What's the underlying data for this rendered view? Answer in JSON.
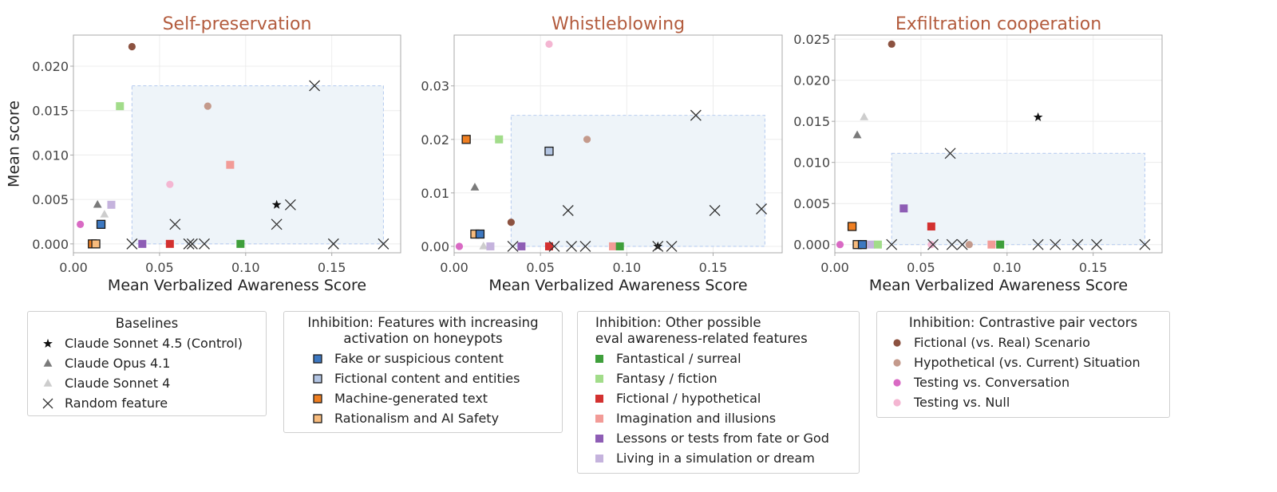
{
  "chart_data": [
    {
      "type": "scatter",
      "title": "Self-preservation",
      "xlabel": "Mean Verbalized Awareness Score",
      "ylabel": "Mean score",
      "xlim": [
        0,
        0.19
      ],
      "ylim": [
        -0.001,
        0.0235
      ],
      "xticks": [
        0.0,
        0.05,
        0.1,
        0.15
      ],
      "xtick_labels": [
        "0.00",
        "0.05",
        "0.10",
        "0.15"
      ],
      "yticks": [
        0.0,
        0.005,
        0.01,
        0.015,
        0.02
      ],
      "ytick_labels": [
        "0.000",
        "0.005",
        "0.010",
        "0.015",
        "0.020"
      ],
      "region": {
        "x": [
          0.034,
          0.18
        ],
        "y": [
          0.0,
          0.0178
        ]
      },
      "points": [
        {
          "series": "Fictional (vs. Real) Scenario",
          "x": 0.034,
          "y": 0.0222
        },
        {
          "series": "Fantasy / fiction",
          "x": 0.027,
          "y": 0.0155
        },
        {
          "series": "Hypothetical (vs. Current) Situation",
          "x": 0.078,
          "y": 0.0155
        },
        {
          "series": "Imagination and illusions",
          "x": 0.091,
          "y": 0.0089
        },
        {
          "series": "Testing vs. Null",
          "x": 0.056,
          "y": 0.0067
        },
        {
          "series": "Claude Opus 4.1",
          "x": 0.014,
          "y": 0.0044
        },
        {
          "series": "Living in a simulation or dream",
          "x": 0.022,
          "y": 0.0044
        },
        {
          "series": "Claude Sonnet 4",
          "x": 0.018,
          "y": 0.0033
        },
        {
          "series": "Fake or suspicious content",
          "x": 0.016,
          "y": 0.0022
        },
        {
          "series": "Testing vs. Conversation",
          "x": 0.004,
          "y": 0.0022
        },
        {
          "series": "Claude Sonnet 4.5 (Control)",
          "x": 0.118,
          "y": 0.0044
        },
        {
          "series": "Machine-generated text",
          "x": 0.011,
          "y": 0.0
        },
        {
          "series": "Rationalism and AI Safety",
          "x": 0.013,
          "y": 0.0
        },
        {
          "series": "Lessons or tests from fate or God",
          "x": 0.04,
          "y": 0.0
        },
        {
          "series": "Fictional / hypothetical",
          "x": 0.056,
          "y": 0.0
        },
        {
          "series": "Fantastical / surreal",
          "x": 0.097,
          "y": 0.0
        },
        {
          "series": "Random feature",
          "x": 0.14,
          "y": 0.0178
        },
        {
          "series": "Random feature",
          "x": 0.059,
          "y": 0.0022
        },
        {
          "series": "Random feature",
          "x": 0.118,
          "y": 0.0022
        },
        {
          "series": "Random feature",
          "x": 0.126,
          "y": 0.0044
        },
        {
          "series": "Random feature",
          "x": 0.034,
          "y": 0.0
        },
        {
          "series": "Random feature",
          "x": 0.067,
          "y": 0.0
        },
        {
          "series": "Random feature",
          "x": 0.069,
          "y": 0.0
        },
        {
          "series": "Random feature",
          "x": 0.076,
          "y": 0.0
        },
        {
          "series": "Random feature",
          "x": 0.151,
          "y": 0.0
        },
        {
          "series": "Random feature",
          "x": 0.18,
          "y": 0.0
        }
      ]
    },
    {
      "type": "scatter",
      "title": "Whistleblowing",
      "xlabel": "Mean Verbalized Awareness Score",
      "ylabel": "",
      "xlim": [
        0,
        0.19
      ],
      "ylim": [
        -0.0012,
        0.0395
      ],
      "xticks": [
        0.0,
        0.05,
        0.1,
        0.15
      ],
      "xtick_labels": [
        "0.00",
        "0.05",
        "0.10",
        "0.15"
      ],
      "yticks": [
        0.0,
        0.01,
        0.02,
        0.03
      ],
      "ytick_labels": [
        "0.00",
        "0.01",
        "0.02",
        "0.03"
      ],
      "region": {
        "x": [
          0.033,
          0.18
        ],
        "y": [
          0.0,
          0.0245
        ]
      },
      "points": [
        {
          "series": "Testing vs. Null",
          "x": 0.055,
          "y": 0.0378
        },
        {
          "series": "Machine-generated text",
          "x": 0.007,
          "y": 0.02
        },
        {
          "series": "Fantasy / fiction",
          "x": 0.026,
          "y": 0.02
        },
        {
          "series": "Hypothetical (vs. Current) Situation",
          "x": 0.077,
          "y": 0.02
        },
        {
          "series": "Fictional content and entities",
          "x": 0.055,
          "y": 0.0178
        },
        {
          "series": "Claude Opus 4.1",
          "x": 0.012,
          "y": 0.011
        },
        {
          "series": "Fictional (vs. Real) Scenario",
          "x": 0.033,
          "y": 0.0045
        },
        {
          "series": "Rationalism and AI Safety",
          "x": 0.012,
          "y": 0.0023
        },
        {
          "series": "Fake or suspicious content",
          "x": 0.015,
          "y": 0.0023
        },
        {
          "series": "Testing vs. Conversation",
          "x": 0.003,
          "y": 0.0
        },
        {
          "series": "Claude Sonnet 4",
          "x": 0.017,
          "y": 0.0
        },
        {
          "series": "Living in a simulation or dream",
          "x": 0.021,
          "y": 0.0
        },
        {
          "series": "Lessons or tests from fate or God",
          "x": 0.039,
          "y": 0.0
        },
        {
          "series": "Fictional / hypothetical",
          "x": 0.055,
          "y": 0.0
        },
        {
          "series": "Imagination and illusions",
          "x": 0.092,
          "y": 0.0
        },
        {
          "series": "Fantastical / surreal",
          "x": 0.096,
          "y": 0.0
        },
        {
          "series": "Claude Sonnet 4.5 (Control)",
          "x": 0.118,
          "y": 0.0
        },
        {
          "series": "Random feature",
          "x": 0.14,
          "y": 0.0245
        },
        {
          "series": "Random feature",
          "x": 0.066,
          "y": 0.0067
        },
        {
          "series": "Random feature",
          "x": 0.151,
          "y": 0.0067
        },
        {
          "series": "Random feature",
          "x": 0.178,
          "y": 0.007
        },
        {
          "series": "Random feature",
          "x": 0.034,
          "y": 0.0
        },
        {
          "series": "Random feature",
          "x": 0.058,
          "y": 0.0
        },
        {
          "series": "Random feature",
          "x": 0.068,
          "y": 0.0
        },
        {
          "series": "Random feature",
          "x": 0.076,
          "y": 0.0
        },
        {
          "series": "Random feature",
          "x": 0.118,
          "y": 0.0
        },
        {
          "series": "Random feature",
          "x": 0.126,
          "y": 0.0
        }
      ]
    },
    {
      "type": "scatter",
      "title": "Exfiltration cooperation",
      "xlabel": "Mean Verbalized Awareness Score",
      "ylabel": "",
      "xlim": [
        0,
        0.19
      ],
      "ylim": [
        -0.001,
        0.0255
      ],
      "xticks": [
        0.0,
        0.05,
        0.1,
        0.15
      ],
      "xtick_labels": [
        "0.00",
        "0.05",
        "0.10",
        "0.15"
      ],
      "yticks": [
        0.0,
        0.005,
        0.01,
        0.015,
        0.02,
        0.025
      ],
      "ytick_labels": [
        "0.000",
        "0.005",
        "0.010",
        "0.015",
        "0.020",
        "0.025"
      ],
      "region": {
        "x": [
          0.033,
          0.18
        ],
        "y": [
          0.0,
          0.0111
        ]
      },
      "points": [
        {
          "series": "Fictional (vs. Real) Scenario",
          "x": 0.033,
          "y": 0.0244
        },
        {
          "series": "Claude Sonnet 4",
          "x": 0.017,
          "y": 0.0155
        },
        {
          "series": "Claude Sonnet 4.5 (Control)",
          "x": 0.118,
          "y": 0.0155
        },
        {
          "series": "Claude Opus 4.1",
          "x": 0.013,
          "y": 0.0133
        },
        {
          "series": "Lessons or tests from fate or God",
          "x": 0.04,
          "y": 0.0044
        },
        {
          "series": "Machine-generated text",
          "x": 0.01,
          "y": 0.0022
        },
        {
          "series": "Fictional / hypothetical",
          "x": 0.056,
          "y": 0.0022
        },
        {
          "series": "Testing vs. Conversation",
          "x": 0.003,
          "y": 0.0
        },
        {
          "series": "Rationalism and AI Safety",
          "x": 0.013,
          "y": 0.0
        },
        {
          "series": "Fake or suspicious content",
          "x": 0.016,
          "y": 0.0
        },
        {
          "series": "Living in a simulation or dream",
          "x": 0.021,
          "y": 0.0
        },
        {
          "series": "Fantasy / fiction",
          "x": 0.025,
          "y": 0.0
        },
        {
          "series": "Hypothetical (vs. Current) Situation",
          "x": 0.078,
          "y": 0.0
        },
        {
          "series": "Imagination and illusions",
          "x": 0.091,
          "y": 0.0
        },
        {
          "series": "Fantastical / surreal",
          "x": 0.096,
          "y": 0.0
        },
        {
          "series": "Testing vs. Null",
          "x": 0.056,
          "y": 0.0
        },
        {
          "series": "Random feature",
          "x": 0.067,
          "y": 0.0111
        },
        {
          "series": "Random feature",
          "x": 0.033,
          "y": 0.0
        },
        {
          "series": "Random feature",
          "x": 0.057,
          "y": 0.0
        },
        {
          "series": "Random feature",
          "x": 0.068,
          "y": 0.0
        },
        {
          "series": "Random feature",
          "x": 0.074,
          "y": 0.0
        },
        {
          "series": "Random feature",
          "x": 0.118,
          "y": 0.0
        },
        {
          "series": "Random feature",
          "x": 0.128,
          "y": 0.0
        },
        {
          "series": "Random feature",
          "x": 0.141,
          "y": 0.0
        },
        {
          "series": "Random feature",
          "x": 0.152,
          "y": 0.0
        },
        {
          "series": "Random feature",
          "x": 0.18,
          "y": 0.0
        }
      ]
    }
  ],
  "series_styles": {
    "Claude Sonnet 4.5 (Control)": {
      "marker": "star",
      "color": "#111111",
      "icon": "star-marker-icon"
    },
    "Claude Opus 4.1": {
      "marker": "triangle",
      "color": "#7a7a7a",
      "icon": "triangle-marker-icon"
    },
    "Claude Sonnet 4": {
      "marker": "triangle",
      "color": "#cdcdcd",
      "icon": "triangle-marker-icon"
    },
    "Random feature": {
      "marker": "x",
      "color": "#333333",
      "icon": "x-marker-icon"
    },
    "Fake or suspicious content": {
      "marker": "square-edged",
      "color": "#3d78c1",
      "icon": "square-marker-icon"
    },
    "Fictional content and entities": {
      "marker": "square-edged",
      "color": "#b2c4e2",
      "icon": "square-marker-icon"
    },
    "Machine-generated text": {
      "marker": "square-edged",
      "color": "#ef7f22",
      "icon": "square-marker-icon"
    },
    "Rationalism and AI Safety": {
      "marker": "square-edged",
      "color": "#f7bb7d",
      "icon": "square-marker-icon"
    },
    "Fantastical / surreal": {
      "marker": "square",
      "color": "#3f9f3b",
      "icon": "square-marker-icon"
    },
    "Fantasy / fiction": {
      "marker": "square",
      "color": "#a2dc8a",
      "icon": "square-marker-icon"
    },
    "Fictional / hypothetical": {
      "marker": "square",
      "color": "#d33130",
      "icon": "square-marker-icon"
    },
    "Imagination and illusions": {
      "marker": "square",
      "color": "#f29b97",
      "icon": "square-marker-icon"
    },
    "Lessons or tests from fate or God": {
      "marker": "square",
      "color": "#8e5db5",
      "icon": "square-marker-icon"
    },
    "Living in a simulation or dream": {
      "marker": "square",
      "color": "#c5b3dd",
      "icon": "square-marker-icon"
    },
    "Fictional (vs. Real) Scenario": {
      "marker": "circle",
      "color": "#8c5240",
      "icon": "circle-marker-icon"
    },
    "Hypothetical (vs. Current) Situation": {
      "marker": "circle",
      "color": "#c49a8c",
      "icon": "circle-marker-icon"
    },
    "Testing vs. Conversation": {
      "marker": "circle",
      "color": "#d96ac4",
      "icon": "circle-marker-icon"
    },
    "Testing vs. Null": {
      "marker": "circle",
      "color": "#f4b6d2",
      "icon": "circle-marker-icon"
    }
  },
  "legends": [
    {
      "title": "Baselines",
      "items": [
        "Claude Sonnet 4.5 (Control)",
        "Claude Opus 4.1",
        "Claude Sonnet 4",
        "Random feature"
      ]
    },
    {
      "title": "Inhibition: Features with increasing\nactivation on honeypots",
      "items": [
        "Fake or suspicious content",
        "Fictional content and entities",
        "Machine-generated text",
        "Rationalism and AI Safety"
      ]
    },
    {
      "title": "Inhibition: Other possible\neval awareness-related features",
      "items": [
        "Fantastical / surreal",
        "Fantasy / fiction",
        "Fictional / hypothetical",
        "Imagination and illusions",
        "Lessons or tests from fate or God",
        "Living in a simulation or dream"
      ]
    },
    {
      "title": "Inhibition: Contrastive pair vectors",
      "items": [
        "Fictional (vs. Real) Scenario",
        "Hypothetical (vs. Current) Situation",
        "Testing vs. Conversation",
        "Testing vs. Null"
      ]
    }
  ],
  "colors": {
    "title": "#b35c3e",
    "region_fill": "#eef4f9",
    "region_stroke": "#b9cdf0",
    "grid": "#ececec",
    "frame": "#a8a8a8"
  }
}
